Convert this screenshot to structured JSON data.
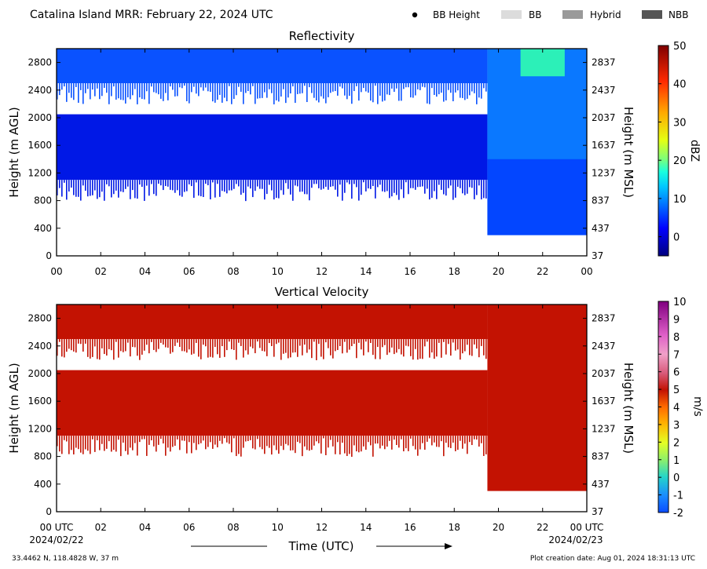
{
  "header": {
    "title": "Catalina Island MRR:  February 22, 2024 UTC",
    "legend": [
      {
        "label": "BB Height",
        "marker": "dot",
        "color": "#000000"
      },
      {
        "label": "BB",
        "marker": "swatch",
        "color": "#dcdcdc"
      },
      {
        "label": "Hybrid",
        "marker": "swatch",
        "color": "#9a9a9a"
      },
      {
        "label": "NBB",
        "marker": "swatch",
        "color": "#555555"
      }
    ]
  },
  "footer": {
    "location": "33.4462 N, 118.4828 W, 37 m",
    "creation": "Plot creation date: Aug 01, 2024 18:31:13 UTC",
    "xlabel": "Time (UTC)",
    "start_date": "2024/02/22",
    "end_date": "2024/02/23"
  },
  "chart_data": [
    {
      "type": "heatmap",
      "title": "Reflectivity",
      "xlabel": "",
      "ylabel": "Height (m AGL)",
      "ylabel_right": "Height (m MSL)",
      "x_ticks": [
        "00",
        "02",
        "04",
        "06",
        "08",
        "10",
        "12",
        "14",
        "16",
        "18",
        "20",
        "22",
        "00"
      ],
      "xlim_hours": [
        0,
        24
      ],
      "y_ticks": [
        0,
        400,
        800,
        1200,
        1600,
        2000,
        2400,
        2800
      ],
      "y_ticks_right": [
        37,
        437,
        837,
        1237,
        1637,
        2037,
        2437,
        2837
      ],
      "ylim": [
        0,
        3000
      ],
      "colorbar": {
        "label": "dBZ",
        "range": [
          -5,
          50
        ],
        "ticks": [
          0,
          10,
          20,
          30,
          40,
          50
        ],
        "colormap": "jet"
      },
      "echo_regions": [
        {
          "hours": [
            0,
            19.5
          ],
          "height_m": [
            2500,
            3000
          ],
          "dbz": 3
        },
        {
          "hours": [
            0,
            19.5
          ],
          "height_m": [
            1100,
            2050
          ],
          "dbz": -2
        },
        {
          "hours": [
            19.5,
            24
          ],
          "height_m": [
            300,
            3000
          ],
          "dbz": 9
        },
        {
          "hours": [
            21,
            23
          ],
          "height_m": [
            2600,
            3000
          ],
          "dbz": 15
        }
      ]
    },
    {
      "type": "heatmap",
      "title": "Vertical Velocity",
      "xlabel": "Time (UTC)",
      "ylabel": "Height (m AGL)",
      "ylabel_right": "Height (m MSL)",
      "x_ticks": [
        "00 UTC",
        "02",
        "04",
        "06",
        "08",
        "10",
        "12",
        "14",
        "16",
        "18",
        "20",
        "22",
        "00 UTC"
      ],
      "xlim_hours": [
        0,
        24
      ],
      "y_ticks": [
        0,
        400,
        800,
        1200,
        1600,
        2000,
        2400,
        2800
      ],
      "y_ticks_right": [
        37,
        437,
        837,
        1237,
        1637,
        2037,
        2437,
        2837
      ],
      "ylim": [
        0,
        3000
      ],
      "colorbar": {
        "label": "m/s",
        "range": [
          -2,
          10
        ],
        "ticks": [
          -2,
          -1,
          0,
          1,
          2,
          3,
          4,
          5,
          6,
          7,
          8,
          9,
          10
        ]
      },
      "echo_color": "#c31202",
      "echo_regions": [
        {
          "hours": [
            0,
            19.5
          ],
          "height_m": [
            2500,
            3000
          ],
          "velocity_ms": 6
        },
        {
          "hours": [
            0,
            19.5
          ],
          "height_m": [
            1100,
            2050
          ],
          "velocity_ms": 6
        },
        {
          "hours": [
            19.5,
            24
          ],
          "height_m": [
            300,
            3000
          ],
          "velocity_ms": 6
        }
      ]
    }
  ]
}
